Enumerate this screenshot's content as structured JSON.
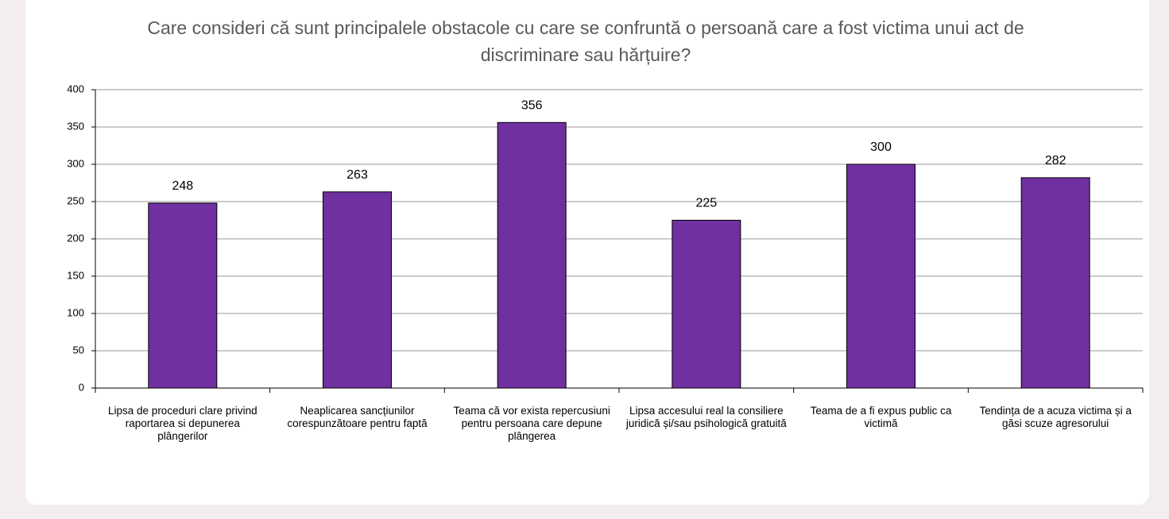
{
  "chart_data": {
    "type": "bar",
    "title": "Care consideri că sunt principalele obstacole cu care se confruntă o persoană care a fost victima unui act de discriminare sau hărțuire?",
    "categories": [
      "Lipsa de proceduri clare privind raportarea si depunerea plângerilor",
      "Neaplicarea sancțiunilor corespunzătoare pentru faptă",
      "Teama că vor exista repercusiuni pentru persoana care depune plângerea",
      "Lipsa accesului real la consiliere juridică și/sau psihologică gratuită",
      "Teama de a fi expus public ca victimă",
      "Tendința de a acuza victima și a găsi scuze agresorului"
    ],
    "values": [
      248,
      263,
      356,
      225,
      300,
      282
    ],
    "color": "#7030a0",
    "ylim": [
      0,
      400
    ],
    "yticks": [
      0,
      50,
      100,
      150,
      200,
      250,
      300,
      350,
      400
    ],
    "grid": true
  }
}
